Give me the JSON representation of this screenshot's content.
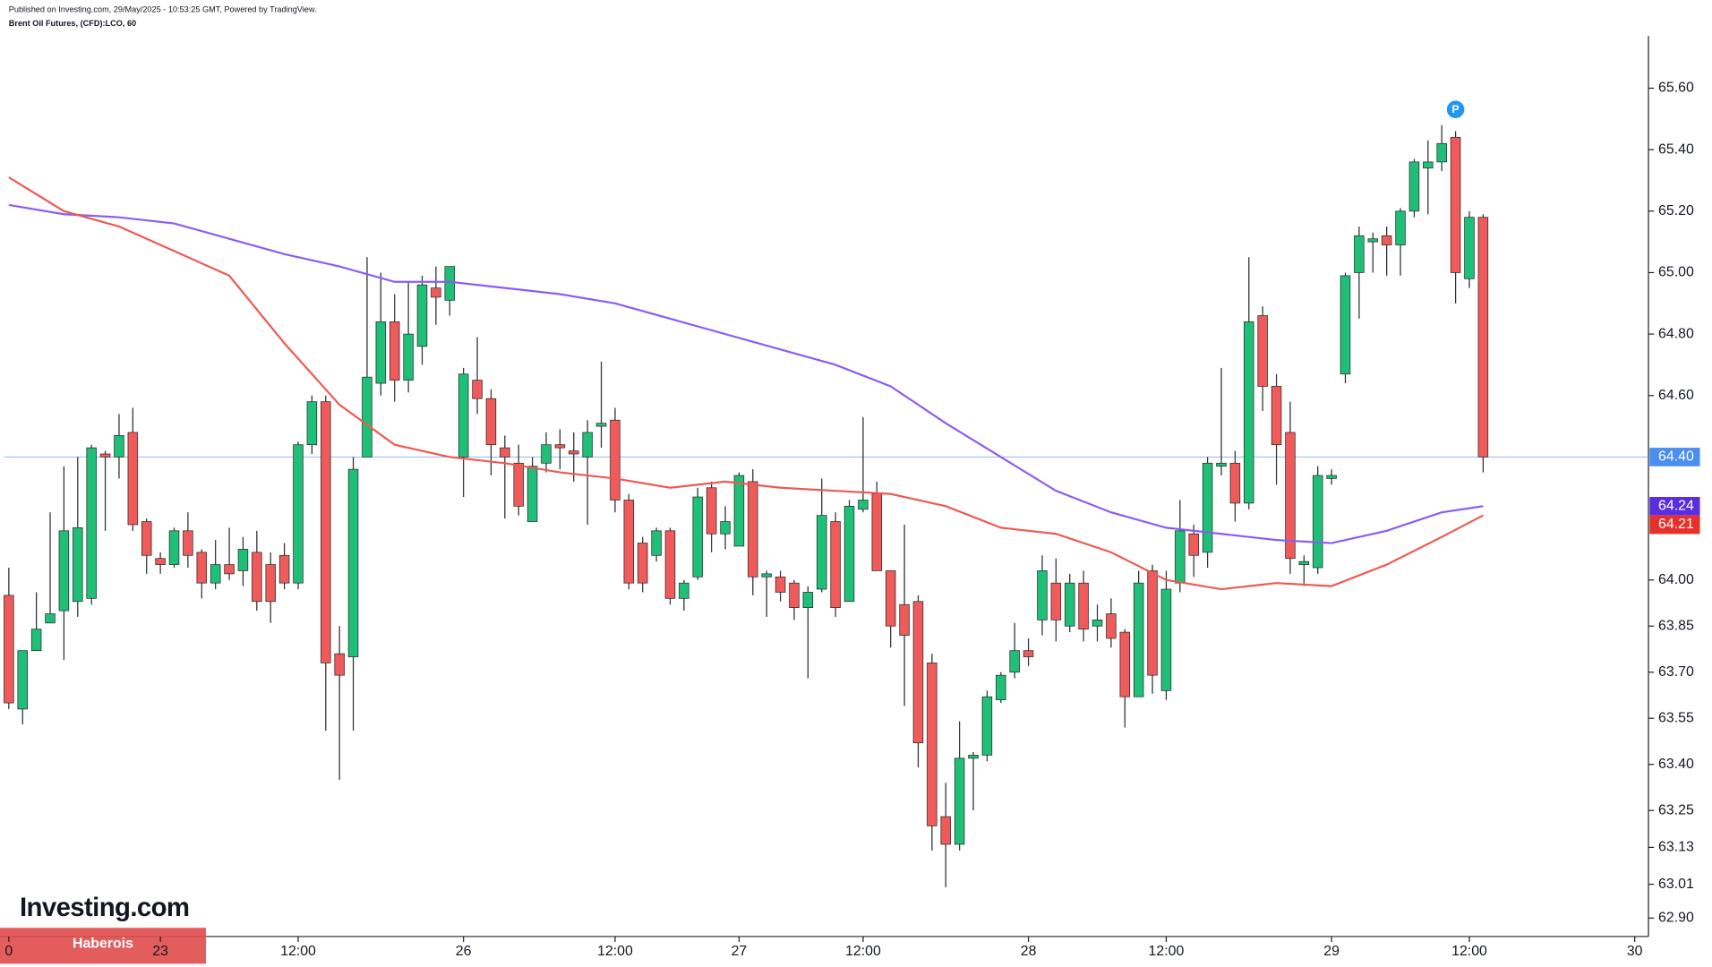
{
  "header": {
    "published": "Published on Investing.com, 29/May/2025 - 10:53:25 GMT, Powered by TradingView."
  },
  "branding": {
    "logo": "Investing.com",
    "watermark": "Haberois"
  },
  "chart_data": {
    "type": "candlestick",
    "title": "Brent Oil Futures, (CFD):LCO, 60",
    "up_color": "#1fbf77",
    "down_color": "#ef5a5a",
    "xlim": [
      -0.64,
      119
    ],
    "xticks": [
      {
        "value": 0,
        "label": "0"
      },
      {
        "value": 11,
        "label": "23"
      },
      {
        "value": 21,
        "label": "12:00"
      },
      {
        "value": 33,
        "label": "26"
      },
      {
        "value": 44,
        "label": "12:00"
      },
      {
        "value": 53,
        "label": "27"
      },
      {
        "value": 62,
        "label": "12:00"
      },
      {
        "value": 74,
        "label": "28"
      },
      {
        "value": 84,
        "label": "12:00"
      },
      {
        "value": 96,
        "label": "29"
      },
      {
        "value": 106,
        "label": "12:00"
      },
      {
        "value": 118,
        "label": "30"
      }
    ],
    "ylim": [
      62.84,
      65.77
    ],
    "yticks": [
      {
        "value": 65.6,
        "label": "65.60"
      },
      {
        "value": 65.4,
        "label": "65.40"
      },
      {
        "value": 65.2,
        "label": "65.20"
      },
      {
        "value": 65.0,
        "label": "65.00"
      },
      {
        "value": 64.8,
        "label": "64.80"
      },
      {
        "value": 64.6,
        "label": "64.60"
      },
      {
        "value": 64.0,
        "label": "64.00"
      },
      63.85,
      {
        "value": 63.7,
        "label": "63.70"
      },
      63.55,
      {
        "value": 63.4,
        "label": "63.40"
      },
      63.25,
      63.13,
      63.01,
      {
        "value": 62.9,
        "label": "62.90"
      }
    ],
    "open": [
      63.95,
      63.58,
      63.77,
      63.86,
      63.9,
      63.93,
      63.94,
      64.41,
      64.4,
      64.48,
      64.19,
      64.07,
      64.05,
      64.16,
      64.09,
      63.99,
      64.05,
      64.03,
      64.09,
      64.05,
      64.08,
      63.99,
      64.44,
      64.58,
      63.76,
      63.75,
      64.4,
      64.64,
      64.84,
      64.65,
      64.76,
      64.95,
      64.91,
      64.4,
      64.65,
      64.59,
      64.43,
      64.38,
      64.19,
      64.38,
      64.44,
      64.42,
      64.4,
      64.5,
      64.52,
      64.26,
      64.12,
      64.08,
      64.16,
      63.94,
      64.01,
      64.3,
      64.15,
      64.11,
      64.32,
      64.01,
      64.01,
      63.99,
      63.91,
      63.97,
      64.19,
      63.93,
      64.23,
      64.28,
      64.03,
      63.92,
      63.93,
      63.73,
      63.23,
      63.14,
      63.42,
      63.43,
      63.61,
      63.7,
      63.77,
      63.87,
      63.99,
      63.85,
      63.99,
      63.85,
      63.89,
      63.83,
      63.62,
      64.03,
      63.64,
      63.99,
      64.15,
      64.09,
      64.37,
      64.38,
      64.25,
      64.86,
      64.63,
      64.48,
      64.05,
      64.04,
      64.33,
      64.67,
      65.0,
      65.1,
      65.12,
      65.09,
      65.2,
      65.34,
      65.36,
      65.44,
      64.98,
      65.18
    ],
    "high": [
      64.04,
      63.77,
      63.96,
      64.22,
      64.37,
      64.4,
      64.44,
      64.42,
      64.54,
      64.56,
      64.2,
      64.09,
      64.17,
      64.22,
      64.1,
      64.13,
      64.17,
      64.14,
      64.16,
      64.09,
      64.12,
      64.45,
      64.6,
      64.6,
      63.85,
      64.4,
      65.05,
      65.0,
      64.93,
      64.97,
      64.99,
      65.02,
      65.02,
      64.69,
      64.79,
      64.62,
      64.47,
      64.44,
      64.4,
      64.48,
      64.49,
      64.48,
      64.52,
      64.71,
      64.56,
      64.28,
      64.14,
      64.17,
      64.17,
      64.0,
      64.3,
      64.32,
      64.24,
      64.35,
      64.36,
      64.03,
      64.03,
      64.0,
      63.98,
      64.33,
      64.22,
      64.26,
      64.53,
      64.32,
      64.03,
      64.18,
      63.95,
      63.76,
      63.34,
      63.54,
      63.44,
      63.64,
      63.7,
      63.86,
      63.81,
      64.08,
      64.07,
      64.02,
      64.03,
      63.92,
      63.94,
      63.84,
      64.03,
      64.05,
      64.03,
      64.26,
      64.18,
      64.4,
      64.69,
      64.42,
      65.05,
      64.89,
      64.67,
      64.58,
      64.08,
      64.37,
      64.36,
      65.0,
      65.15,
      65.13,
      65.15,
      65.21,
      65.37,
      65.43,
      65.48,
      65.46,
      65.2,
      65.19
    ],
    "low": [
      63.58,
      63.53,
      63.77,
      63.86,
      63.74,
      63.88,
      63.92,
      64.16,
      64.33,
      64.16,
      64.02,
      64.02,
      64.04,
      64.04,
      63.94,
      63.97,
      64.0,
      63.98,
      63.9,
      63.86,
      63.97,
      63.97,
      64.41,
      63.51,
      63.35,
      63.51,
      64.4,
      64.6,
      64.58,
      64.61,
      64.7,
      64.83,
      64.86,
      64.27,
      64.54,
      64.34,
      64.2,
      64.21,
      64.19,
      64.35,
      64.36,
      64.32,
      64.18,
      64.43,
      64.22,
      63.97,
      63.96,
      64.06,
      63.92,
      63.9,
      64.0,
      64.09,
      64.1,
      64.11,
      63.95,
      63.88,
      63.93,
      63.87,
      63.68,
      63.96,
      63.88,
      63.93,
      64.22,
      64.03,
      63.78,
      63.59,
      63.39,
      63.12,
      63.0,
      63.12,
      63.25,
      63.41,
      63.6,
      63.68,
      63.72,
      63.82,
      63.8,
      63.83,
      63.8,
      63.8,
      63.78,
      63.52,
      63.62,
      63.63,
      63.61,
      63.96,
      64.01,
      64.04,
      64.34,
      64.19,
      64.23,
      64.55,
      64.31,
      64.02,
      63.98,
      64.02,
      64.31,
      64.64,
      64.85,
      65.0,
      64.99,
      64.99,
      65.18,
      65.19,
      65.33,
      64.9,
      64.95,
      64.35
    ],
    "close": [
      63.6,
      63.77,
      63.84,
      63.89,
      64.16,
      64.17,
      64.43,
      64.4,
      64.47,
      64.18,
      64.08,
      64.05,
      64.16,
      64.08,
      63.99,
      64.05,
      64.02,
      64.1,
      63.93,
      63.93,
      63.99,
      64.44,
      64.58,
      63.73,
      63.69,
      64.36,
      64.66,
      64.84,
      64.65,
      64.8,
      64.96,
      64.92,
      65.02,
      64.67,
      64.59,
      64.44,
      64.4,
      64.24,
      64.37,
      64.44,
      64.43,
      64.41,
      64.48,
      64.51,
      64.26,
      63.99,
      63.99,
      64.16,
      63.94,
      63.99,
      64.27,
      64.15,
      64.19,
      64.34,
      64.01,
      64.02,
      63.96,
      63.91,
      63.96,
      64.21,
      63.91,
      64.24,
      64.26,
      64.03,
      63.85,
      63.82,
      63.47,
      63.2,
      63.14,
      63.42,
      63.43,
      63.62,
      63.69,
      63.77,
      63.75,
      64.03,
      63.87,
      63.99,
      63.84,
      63.87,
      63.81,
      63.62,
      63.99,
      63.69,
      63.97,
      64.16,
      64.08,
      64.38,
      64.38,
      64.25,
      64.84,
      64.63,
      64.44,
      64.07,
      64.06,
      64.34,
      64.34,
      64.99,
      65.12,
      65.11,
      65.09,
      65.2,
      65.36,
      65.36,
      65.42,
      65.0,
      65.18,
      64.4
    ],
    "lines": [
      {
        "color": "#8b5cf6",
        "x": [
          0,
          4,
          8,
          12,
          16,
          20,
          24,
          28,
          32,
          36,
          40,
          44,
          48,
          52,
          56,
          60,
          64,
          68,
          72,
          76,
          80,
          84,
          88,
          92,
          96,
          100,
          104,
          107
        ],
        "values": [
          65.22,
          65.19,
          65.18,
          65.16,
          65.11,
          65.06,
          65.02,
          64.97,
          64.97,
          64.95,
          64.93,
          64.9,
          64.85,
          64.8,
          64.75,
          64.7,
          64.63,
          64.51,
          64.4,
          64.29,
          64.22,
          64.17,
          64.15,
          64.13,
          64.12,
          64.16,
          64.22,
          64.24
        ],
        "last_value": 64.24,
        "label_color": "#5a2ee0"
      },
      {
        "color": "#ee5a52",
        "x": [
          0,
          4,
          8,
          12,
          16,
          20,
          24,
          28,
          32,
          36,
          40,
          44,
          48,
          52,
          56,
          60,
          64,
          68,
          72,
          76,
          80,
          84,
          88,
          92,
          96,
          100,
          104,
          107
        ],
        "values": [
          65.31,
          65.2,
          65.15,
          65.07,
          64.99,
          64.77,
          64.57,
          64.44,
          64.4,
          64.38,
          64.35,
          64.33,
          64.3,
          64.32,
          64.3,
          64.29,
          64.28,
          64.24,
          64.17,
          64.15,
          64.09,
          64.0,
          63.97,
          63.99,
          63.98,
          64.05,
          64.14,
          64.21
        ],
        "last_value": 64.21,
        "label_color": "#e8302a"
      }
    ],
    "last_price": {
      "value": 64.4,
      "label": "64.40",
      "color": "#4a8ef0"
    },
    "marker": {
      "index": 105,
      "label": "P",
      "color": "#2196f3"
    }
  }
}
